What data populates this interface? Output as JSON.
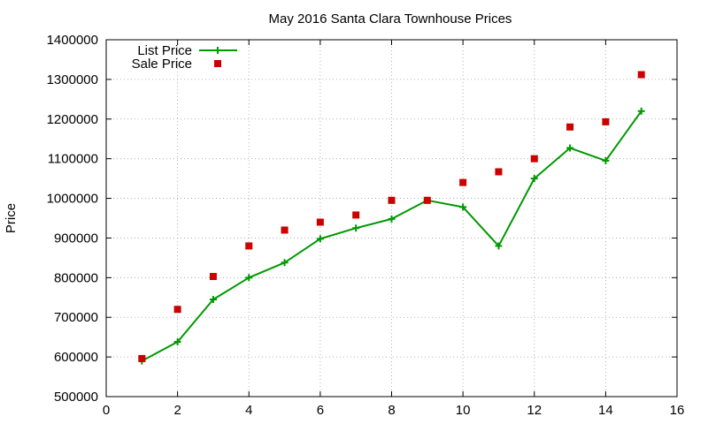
{
  "chart_data": {
    "type": "line",
    "title": "May 2016 Santa Clara Townhouse Prices",
    "xlabel": "",
    "ylabel": "Price",
    "xlim": [
      0,
      16
    ],
    "ylim": [
      500000,
      1400000
    ],
    "x_ticks": [
      0,
      2,
      4,
      6,
      8,
      10,
      12,
      14,
      16
    ],
    "y_ticks": [
      500000,
      600000,
      700000,
      800000,
      900000,
      1000000,
      1100000,
      1200000,
      1300000,
      1400000
    ],
    "grid": true,
    "legend_position": "top-left",
    "x": [
      1,
      2,
      3,
      4,
      5,
      6,
      7,
      8,
      9,
      10,
      11,
      12,
      13,
      14,
      15
    ],
    "series": [
      {
        "name": "List Price",
        "style": "line-with-plus-markers",
        "color": "#009900",
        "values": [
          590000,
          638000,
          745000,
          800000,
          838000,
          898000,
          925000,
          948000,
          995000,
          978000,
          880000,
          1050000,
          1127000,
          1095000,
          1220000
        ]
      },
      {
        "name": "Sale Price",
        "style": "square-markers",
        "color": "#cc0000",
        "values": [
          596000,
          720000,
          803000,
          880000,
          920000,
          940000,
          958000,
          995000,
          995000,
          1040000,
          1067000,
          1100000,
          1180000,
          1193000,
          1312000
        ]
      }
    ]
  }
}
